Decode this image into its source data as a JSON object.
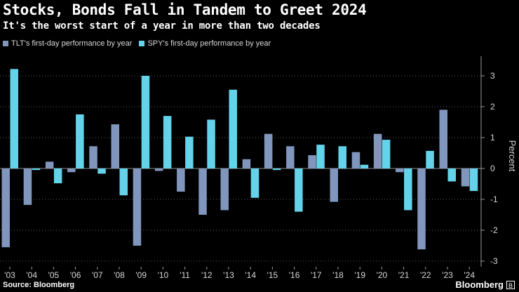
{
  "title": "Stocks, Bonds Fall in Tandem to Greet 2024",
  "subtitle": "It's the worst start of a year in more than two decades",
  "source": "Source: Bloomberg",
  "brand": "Bloomberg",
  "brand_icon": "bloomberg-logo-icon",
  "colors": {
    "background": "#000000",
    "tlt": "#8096bd",
    "spy": "#64d3ea",
    "grid": "#5a5a5a",
    "axis_text": "#d8d8d8"
  },
  "chart_data": {
    "type": "bar",
    "categories": [
      "'03",
      "'04",
      "'05",
      "'06",
      "'07",
      "'08",
      "'09",
      "'10",
      "'11",
      "'12",
      "'13",
      "'14",
      "'15",
      "'16",
      "'17",
      "'18",
      "'19",
      "'20",
      "'21",
      "'22",
      "'23",
      "'24"
    ],
    "series": [
      {
        "name": "TLT's first-day performance by year",
        "color": "#8096bd",
        "values": [
          -2.55,
          -1.18,
          0.22,
          -0.12,
          0.72,
          1.43,
          -2.5,
          -0.08,
          -0.75,
          -1.5,
          -1.35,
          0.3,
          1.12,
          0.72,
          0.43,
          -1.08,
          0.53,
          1.12,
          -0.12,
          -2.62,
          1.9,
          -0.58
        ]
      },
      {
        "name": "SPY's first-day performance by year",
        "color": "#64d3ea",
        "values": [
          3.22,
          -0.05,
          -0.48,
          1.75,
          -0.17,
          -0.87,
          3.0,
          1.7,
          1.03,
          1.58,
          2.55,
          -0.95,
          -0.05,
          -1.4,
          0.77,
          0.72,
          0.12,
          0.93,
          -1.35,
          0.57,
          -0.42,
          -0.73
        ]
      }
    ],
    "ylabel": "Percent",
    "ylim": [
      -3.3,
      3.9
    ],
    "yticks": [
      "3",
      "2",
      "1",
      "0",
      "-1",
      "-2",
      "-3"
    ],
    "ytick_values": [
      3,
      2,
      1,
      0,
      -1,
      -2,
      -3
    ],
    "y_axis_position": "right",
    "grid": true,
    "legend_position": "top-left"
  }
}
